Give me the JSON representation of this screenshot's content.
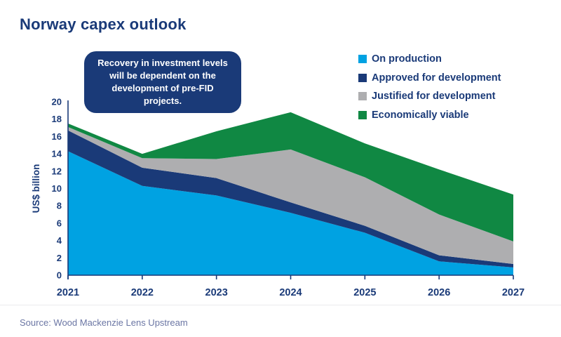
{
  "page": {
    "title": "Norway capex outlook"
  },
  "callout": {
    "text": "Recovery in investment levels will be dependent on the development of pre-FID projects."
  },
  "source": {
    "text": "Source: Wood Mackenzie Lens Upstream"
  },
  "colors": {
    "navy": "#1A3A78",
    "light_blue": "#00A2E2",
    "gray": "#AEAEB0",
    "green": "#108843",
    "source_text": "#6B76A4"
  },
  "chart_data": {
    "type": "area",
    "stacked": true,
    "title": "Norway capex outlook",
    "xlabel": "",
    "ylabel": "US$ billion",
    "ylim": [
      0,
      20
    ],
    "ytick_step": 2,
    "grid": false,
    "legend_position": "top-right",
    "x": [
      2021,
      2022,
      2023,
      2024,
      2025,
      2026,
      2027
    ],
    "series": [
      {
        "name": "On production",
        "color": "#00A2E2",
        "values": [
          14.3,
          10.3,
          9.2,
          7.2,
          4.9,
          1.6,
          0.9
        ]
      },
      {
        "name": "Approved for development",
        "color": "#1A3A78",
        "values": [
          2.4,
          2.1,
          2.0,
          1.2,
          0.8,
          0.7,
          0.4
        ]
      },
      {
        "name": "Justified for development",
        "color": "#AEAEB0",
        "values": [
          0.4,
          1.1,
          2.2,
          6.1,
          5.6,
          4.7,
          2.6
        ]
      },
      {
        "name": "Economically viable",
        "color": "#108843",
        "values": [
          0.4,
          0.5,
          3.2,
          4.3,
          3.9,
          5.2,
          5.4
        ]
      }
    ],
    "stack_totals": [
      17.5,
      14.0,
      16.6,
      18.8,
      15.2,
      12.2,
      9.3
    ]
  }
}
